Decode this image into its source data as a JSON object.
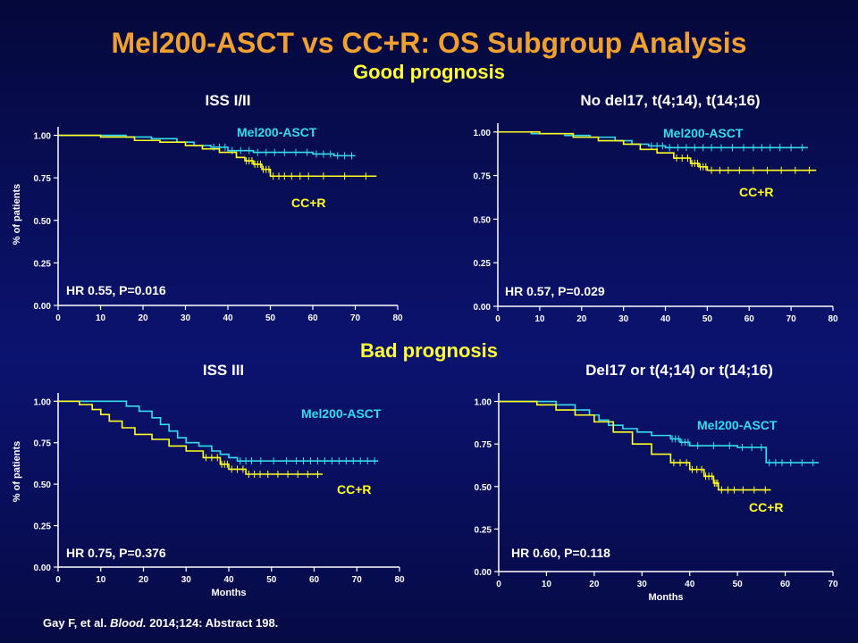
{
  "title": "Mel200-ASCT vs CC+R: OS Subgroup Analysis",
  "section_good": "Good prognosis",
  "section_bad": "Bad prognosis",
  "footnote": {
    "authors": "Gay F, et al.",
    "journal": "Blood.",
    "rest": "2014;124: Abstract 198."
  },
  "colors": {
    "mel": "#33ddee",
    "ccr": "#ffff22",
    "axis": "#ffffff",
    "title": "#f0a030"
  },
  "chart_data": [
    {
      "type": "line",
      "title": "ISS I/II",
      "xlabel": "",
      "ylabel": "% of patients",
      "xlim": [
        0,
        80
      ],
      "ylim": [
        0,
        1.05
      ],
      "xticks": [
        "0",
        "10",
        "20",
        "30",
        "40",
        "50",
        "60",
        "70",
        "80"
      ],
      "yticks": [
        "0.00",
        "0.25",
        "0.50",
        "0.75",
        "1.00"
      ],
      "annotation": "HR 0.55, P=0.016",
      "series": [
        {
          "name": "Mel200-ASCT",
          "color": "#33ddee",
          "x": [
            0,
            8,
            16,
            22,
            28,
            32,
            36,
            40,
            46,
            52,
            60,
            65,
            70
          ],
          "y": [
            1.0,
            1.0,
            0.99,
            0.98,
            0.96,
            0.94,
            0.93,
            0.91,
            0.9,
            0.9,
            0.89,
            0.88,
            0.88
          ]
        },
        {
          "name": "CC+R",
          "color": "#ffff22",
          "x": [
            0,
            10,
            18,
            24,
            30,
            34,
            38,
            42,
            44,
            46,
            48,
            50,
            54,
            60,
            75
          ],
          "y": [
            1.0,
            0.99,
            0.97,
            0.96,
            0.94,
            0.92,
            0.9,
            0.87,
            0.85,
            0.83,
            0.8,
            0.76,
            0.76,
            0.76,
            0.76
          ]
        }
      ]
    },
    {
      "type": "line",
      "title": "No del17, t(4;14), t(14;16)",
      "xlabel": "",
      "ylabel": "",
      "xlim": [
        0,
        80
      ],
      "ylim": [
        0,
        1.05
      ],
      "xticks": [
        "0",
        "10",
        "20",
        "30",
        "40",
        "50",
        "60",
        "70",
        "80"
      ],
      "yticks": [
        "0.00",
        "0.25",
        "0.50",
        "0.75",
        "1.00"
      ],
      "annotation": "HR 0.57, P=0.029",
      "series": [
        {
          "name": "Mel200-ASCT",
          "color": "#33ddee",
          "x": [
            0,
            8,
            16,
            22,
            28,
            32,
            36,
            40,
            46,
            52,
            60,
            66,
            74
          ],
          "y": [
            1.0,
            0.99,
            0.98,
            0.97,
            0.95,
            0.93,
            0.92,
            0.91,
            0.91,
            0.91,
            0.91,
            0.91,
            0.91
          ]
        },
        {
          "name": "CC+R",
          "color": "#ffff22",
          "x": [
            0,
            10,
            18,
            24,
            30,
            34,
            38,
            42,
            46,
            48,
            50,
            56,
            66,
            76
          ],
          "y": [
            1.0,
            0.99,
            0.97,
            0.95,
            0.93,
            0.9,
            0.88,
            0.85,
            0.82,
            0.8,
            0.78,
            0.78,
            0.78,
            0.78
          ]
        }
      ]
    },
    {
      "type": "line",
      "title": "ISS III",
      "xlabel": "Months",
      "ylabel": "% of patients",
      "xlim": [
        0,
        80
      ],
      "ylim": [
        0,
        1.05
      ],
      "xticks": [
        "0",
        "10",
        "20",
        "30",
        "40",
        "50",
        "60",
        "70",
        "80"
      ],
      "yticks": [
        "0.00",
        "0.25",
        "0.50",
        "0.75",
        "1.00"
      ],
      "annotation": "HR 0.75, P=0.376",
      "series": [
        {
          "name": "Mel200-ASCT",
          "color": "#33ddee",
          "x": [
            0,
            13,
            16,
            19,
            22,
            24,
            26,
            28,
            30,
            33,
            36,
            38,
            40,
            42,
            46,
            55,
            60,
            65,
            70,
            75
          ],
          "y": [
            1.0,
            1.0,
            0.97,
            0.94,
            0.9,
            0.86,
            0.82,
            0.78,
            0.75,
            0.73,
            0.7,
            0.68,
            0.66,
            0.64,
            0.64,
            0.64,
            0.64,
            0.64,
            0.64,
            0.64
          ]
        },
        {
          "name": "CC+R",
          "color": "#ffff22",
          "x": [
            0,
            5,
            8,
            10,
            12,
            15,
            18,
            22,
            26,
            30,
            34,
            38,
            40,
            44,
            48,
            55,
            62
          ],
          "y": [
            1.0,
            0.98,
            0.95,
            0.92,
            0.88,
            0.84,
            0.8,
            0.77,
            0.73,
            0.7,
            0.66,
            0.62,
            0.59,
            0.56,
            0.56,
            0.56,
            0.56
          ]
        }
      ]
    },
    {
      "type": "line",
      "title": "Del17 or t(4;14) or t(14;16)",
      "xlabel": "Months",
      "ylabel": "",
      "xlim": [
        0,
        70
      ],
      "ylim": [
        0,
        1.05
      ],
      "xticks": [
        "0",
        "10",
        "20",
        "30",
        "40",
        "50",
        "60",
        "70"
      ],
      "yticks": [
        "0.00",
        "0.25",
        "0.50",
        "0.75",
        "1.00"
      ],
      "annotation": "HR 0.60, P=0.118",
      "series": [
        {
          "name": "Mel200-ASCT",
          "color": "#33ddee",
          "x": [
            0,
            7,
            12,
            16,
            19,
            21,
            23,
            26,
            29,
            32,
            36,
            38,
            40,
            50,
            56,
            60,
            67
          ],
          "y": [
            1.0,
            1.0,
            0.98,
            0.95,
            0.92,
            0.89,
            0.86,
            0.84,
            0.82,
            0.8,
            0.78,
            0.76,
            0.74,
            0.73,
            0.64,
            0.64,
            0.64
          ]
        },
        {
          "name": "CC+R",
          "color": "#ffff22",
          "x": [
            0,
            8,
            12,
            16,
            20,
            24,
            28,
            32,
            36,
            40,
            43,
            45,
            46,
            50,
            57
          ],
          "y": [
            1.0,
            0.98,
            0.95,
            0.92,
            0.88,
            0.82,
            0.75,
            0.69,
            0.64,
            0.6,
            0.56,
            0.52,
            0.48,
            0.48,
            0.48
          ]
        }
      ]
    }
  ]
}
